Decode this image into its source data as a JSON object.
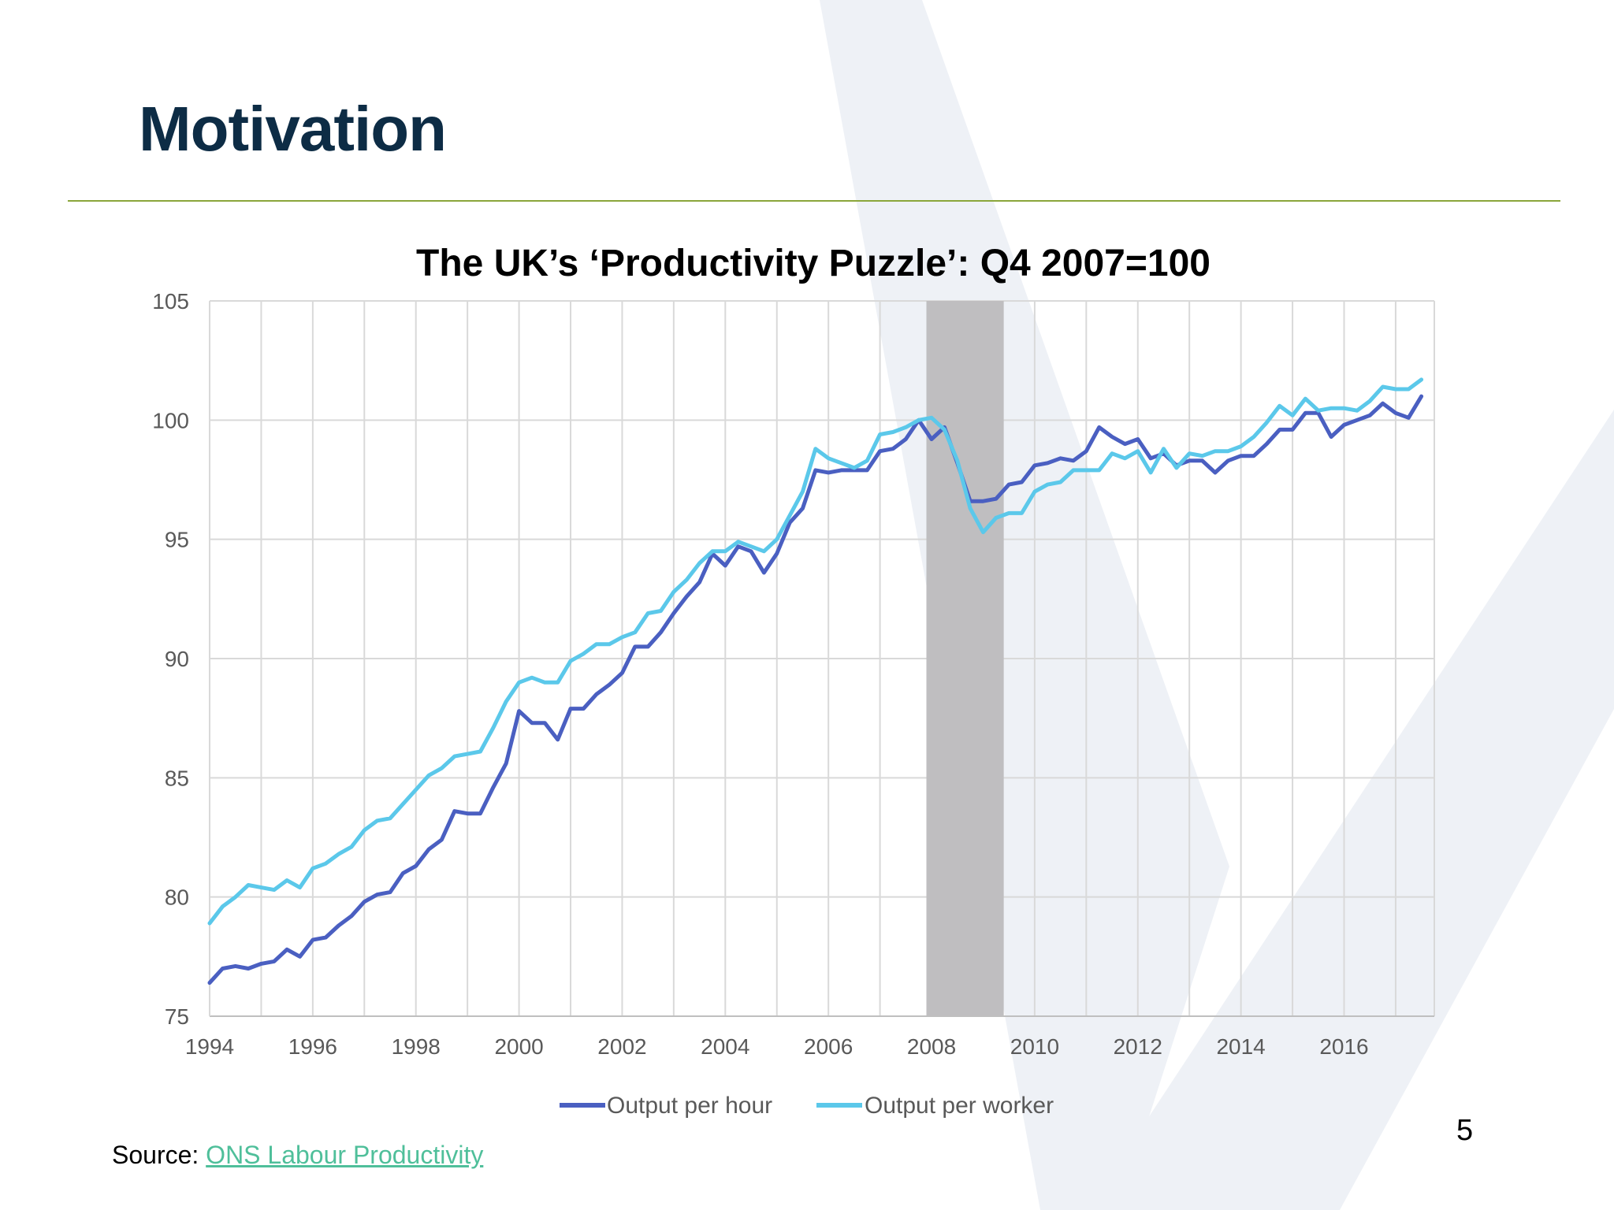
{
  "slide": {
    "title": "Motivation",
    "page_number": "5",
    "source_label": "Source: ",
    "source_link": "ONS Labour Productivity"
  },
  "colors": {
    "title": "#0d2c45",
    "rule": "#8aa63a",
    "output_per_hour": "#4a5fc1",
    "output_per_worker": "#5bc8ea",
    "recession": "#bfbec0",
    "watermark": "#eef1f6",
    "link": "#4fbf9a"
  },
  "chart_data": {
    "type": "line",
    "title": "The UK’s ‘Productivity Puzzle’: Q4 2007=100",
    "xlabel": "",
    "ylabel": "",
    "xlim": [
      1994.0,
      2017.75
    ],
    "ylim": [
      75,
      105
    ],
    "x_ticks": [
      1994,
      1996,
      1998,
      2000,
      2002,
      2004,
      2006,
      2008,
      2010,
      2012,
      2014,
      2016
    ],
    "y_ticks": [
      75,
      80,
      85,
      90,
      95,
      100,
      105
    ],
    "x_tick_labels": [
      "1994",
      "1996",
      "1998",
      "2000",
      "2002",
      "2004",
      "2006",
      "2008",
      "2010",
      "2012",
      "2014",
      "2016"
    ],
    "y_tick_labels": [
      "75",
      "80",
      "85",
      "90",
      "95",
      "100",
      "105"
    ],
    "grid": true,
    "legend_position": "bottom",
    "shaded_region": {
      "x_start": 2007.9,
      "x_end": 2009.4
    },
    "x_start": 1994.0,
    "x_step": 0.25,
    "series": [
      {
        "name": "Output per hour",
        "color": "#4a5fc1",
        "values": [
          76.4,
          77.0,
          77.1,
          77.0,
          77.2,
          77.3,
          77.8,
          77.5,
          78.2,
          78.3,
          78.8,
          79.2,
          79.8,
          80.1,
          80.2,
          81.0,
          81.3,
          82.0,
          82.4,
          83.6,
          83.5,
          83.5,
          84.6,
          85.6,
          87.8,
          87.3,
          87.3,
          86.6,
          87.9,
          87.9,
          88.5,
          88.9,
          89.4,
          90.5,
          90.5,
          91.1,
          91.9,
          92.6,
          93.2,
          94.4,
          93.9,
          94.7,
          94.5,
          93.6,
          94.4,
          95.7,
          96.3,
          97.9,
          97.8,
          97.9,
          97.9,
          97.9,
          98.7,
          98.8,
          99.2,
          100.0,
          99.2,
          99.7,
          98.2,
          96.6,
          96.6,
          96.7,
          97.3,
          97.4,
          98.1,
          98.2,
          98.4,
          98.3,
          98.7,
          99.7,
          99.3,
          99.0,
          99.2,
          98.4,
          98.6,
          98.1,
          98.3,
          98.3,
          97.8,
          98.3,
          98.5,
          98.5,
          99.0,
          99.6,
          99.6,
          100.3,
          100.3,
          99.3,
          99.8,
          100.0,
          100.2,
          100.7,
          100.3,
          100.1,
          101.0
        ]
      },
      {
        "name": "Output per worker",
        "color": "#5bc8ea",
        "values": [
          78.9,
          79.6,
          80.0,
          80.5,
          80.4,
          80.3,
          80.7,
          80.4,
          81.2,
          81.4,
          81.8,
          82.1,
          82.8,
          83.2,
          83.3,
          83.9,
          84.5,
          85.1,
          85.4,
          85.9,
          86.0,
          86.1,
          87.1,
          88.2,
          89.0,
          89.2,
          89.0,
          89.0,
          89.9,
          90.2,
          90.6,
          90.6,
          90.9,
          91.1,
          91.9,
          92.0,
          92.8,
          93.3,
          94.0,
          94.5,
          94.5,
          94.9,
          94.7,
          94.5,
          95.0,
          96.0,
          97.0,
          98.8,
          98.4,
          98.2,
          98.0,
          98.3,
          99.4,
          99.5,
          99.7,
          100.0,
          100.1,
          99.6,
          98.3,
          96.3,
          95.3,
          95.9,
          96.1,
          96.1,
          97.0,
          97.3,
          97.4,
          97.9,
          97.9,
          97.9,
          98.6,
          98.4,
          98.7,
          97.8,
          98.8,
          98.0,
          98.6,
          98.5,
          98.7,
          98.7,
          98.9,
          99.3,
          99.9,
          100.6,
          100.2,
          100.9,
          100.4,
          100.5,
          100.5,
          100.4,
          100.8,
          101.4,
          101.3,
          101.3,
          101.7
        ]
      }
    ]
  }
}
